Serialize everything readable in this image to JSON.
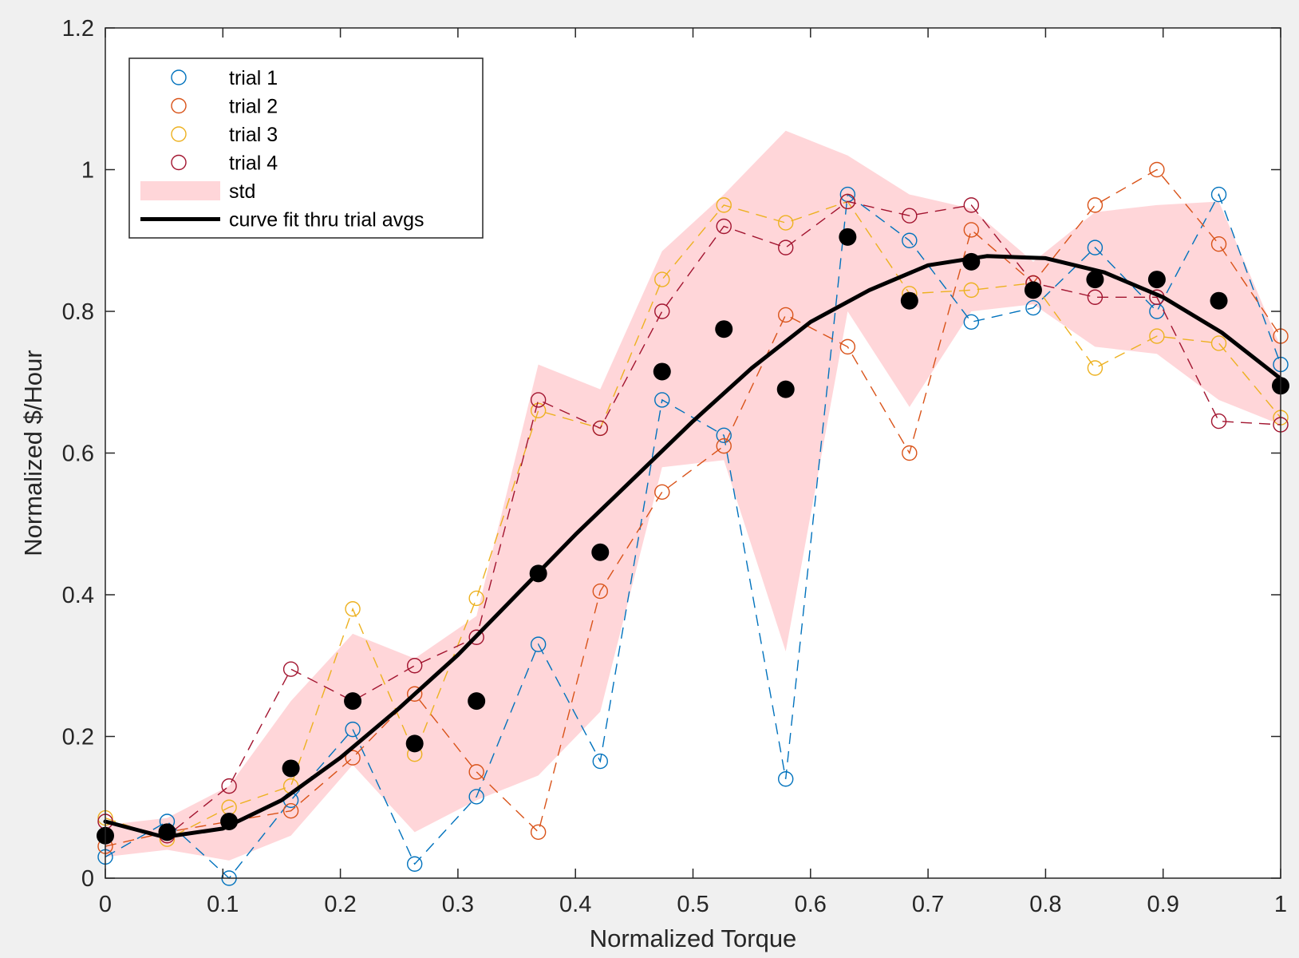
{
  "chart_data": {
    "type": "line",
    "xlabel": "Normalized Torque",
    "ylabel": "Normalized $/Hour",
    "xlim": [
      0,
      1
    ],
    "ylim": [
      0,
      1.2
    ],
    "xticks": [
      "0",
      "0.1",
      "0.2",
      "0.3",
      "0.4",
      "0.5",
      "0.6",
      "0.7",
      "0.8",
      "0.9",
      "1"
    ],
    "yticks": [
      "0",
      "0.2",
      "0.4",
      "0.6",
      "0.8",
      "1",
      "1.2"
    ],
    "grid": false,
    "legend_position": "top-left",
    "x": [
      0,
      0.0526,
      0.1053,
      0.1579,
      0.2105,
      0.2632,
      0.3158,
      0.3684,
      0.4211,
      0.4737,
      0.5263,
      0.5789,
      0.6316,
      0.6842,
      0.7368,
      0.7895,
      0.8421,
      0.8947,
      0.9474,
      1.0
    ],
    "series": [
      {
        "name": "trial 1",
        "color": "#0072BD",
        "marker": "open-circle",
        "line": "dashed",
        "values": [
          0.03,
          0.08,
          0.0,
          0.11,
          0.21,
          0.02,
          0.115,
          0.33,
          0.165,
          0.675,
          0.625,
          0.14,
          0.965,
          0.9,
          0.785,
          0.805,
          0.89,
          0.8,
          0.965,
          0.725
        ]
      },
      {
        "name": "trial 2",
        "color": "#D95319",
        "marker": "open-circle",
        "line": "dashed",
        "values": [
          0.045,
          0.065,
          0.08,
          0.095,
          0.17,
          0.26,
          0.15,
          0.065,
          0.405,
          0.545,
          0.61,
          0.795,
          0.75,
          0.6,
          0.915,
          0.84,
          0.95,
          1.0,
          0.895,
          0.765
        ]
      },
      {
        "name": "trial 3",
        "color": "#EDB120",
        "marker": "open-circle",
        "line": "dashed",
        "values": [
          0.085,
          0.055,
          0.1,
          0.13,
          0.38,
          0.175,
          0.395,
          0.66,
          0.635,
          0.845,
          0.95,
          0.925,
          0.955,
          0.825,
          0.83,
          0.84,
          0.72,
          0.765,
          0.755,
          0.65
        ]
      },
      {
        "name": "trial 4",
        "color": "#A2142F",
        "marker": "open-circle",
        "line": "dashed",
        "values": [
          0.08,
          0.06,
          0.13,
          0.295,
          0.25,
          0.3,
          0.34,
          0.675,
          0.635,
          0.8,
          0.92,
          0.89,
          0.955,
          0.935,
          0.95,
          0.84,
          0.82,
          0.82,
          0.645,
          0.64
        ]
      },
      {
        "name": "std",
        "color": "#FFD6D9",
        "type": "band",
        "upper": [
          0.075,
          0.085,
          0.13,
          0.25,
          0.345,
          0.31,
          0.37,
          0.725,
          0.69,
          0.885,
          0.965,
          1.055,
          1.02,
          0.965,
          0.945,
          0.87,
          0.94,
          0.95,
          0.955,
          0.75
        ],
        "lower": [
          0.03,
          0.04,
          0.025,
          0.06,
          0.16,
          0.065,
          0.11,
          0.145,
          0.235,
          0.58,
          0.59,
          0.32,
          0.8,
          0.665,
          0.8,
          0.81,
          0.75,
          0.74,
          0.675,
          0.64
        ]
      },
      {
        "name": "curve fit thru trial avgs",
        "color": "#000000",
        "type": "fit",
        "x": [
          0,
          0.05,
          0.1,
          0.15,
          0.2,
          0.25,
          0.3,
          0.35,
          0.4,
          0.45,
          0.5,
          0.55,
          0.6,
          0.65,
          0.7,
          0.75,
          0.8,
          0.85,
          0.9,
          0.95,
          1.0
        ],
        "values": [
          0.08,
          0.058,
          0.07,
          0.11,
          0.17,
          0.24,
          0.315,
          0.4,
          0.485,
          0.565,
          0.645,
          0.72,
          0.785,
          0.83,
          0.865,
          0.878,
          0.875,
          0.855,
          0.82,
          0.77,
          0.705
        ]
      }
    ],
    "averages": {
      "color": "#000000",
      "marker": "filled-circle",
      "values": [
        0.06,
        0.065,
        0.08,
        0.155,
        0.25,
        0.19,
        0.25,
        0.43,
        0.46,
        0.715,
        0.775,
        0.69,
        0.905,
        0.815,
        0.87,
        0.83,
        0.845,
        0.845,
        0.815,
        0.695
      ]
    }
  }
}
